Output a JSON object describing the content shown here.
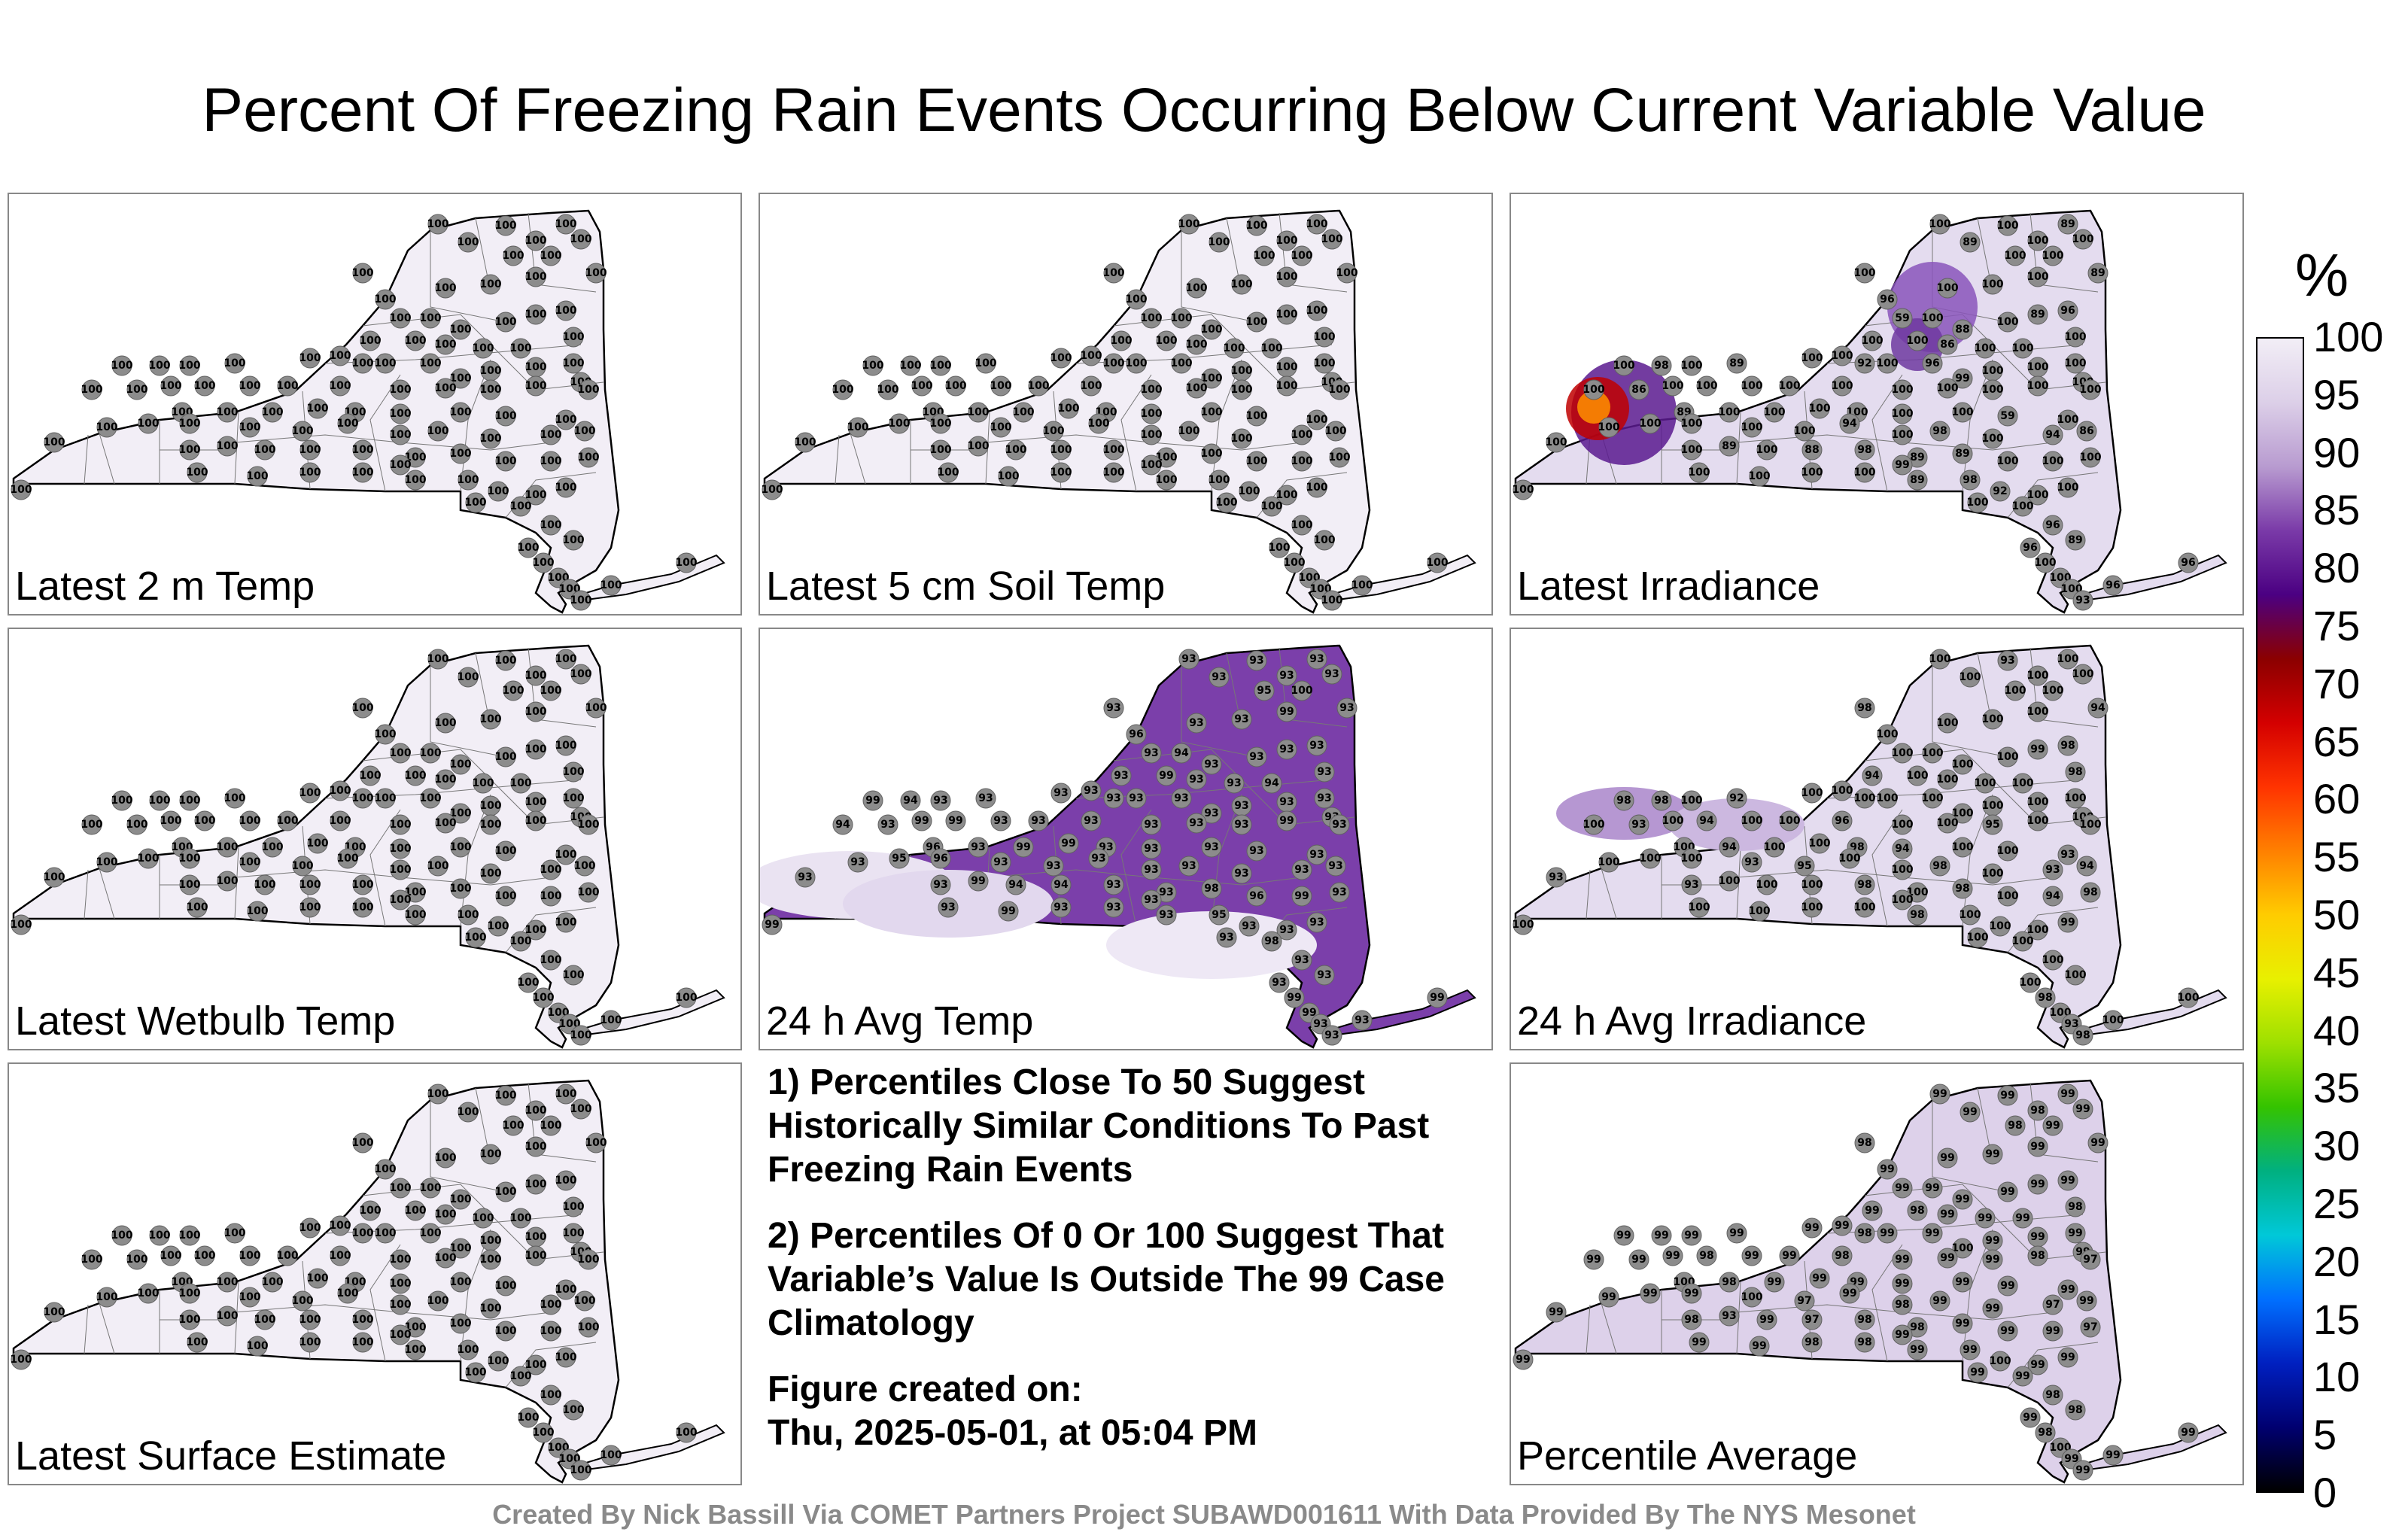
{
  "title": "Percent Of Freezing Rain Events Occurring Below Current Variable Value",
  "colorbar": {
    "unit": "%",
    "ticks": [
      "100",
      "95",
      "90",
      "85",
      "80",
      "75",
      "70",
      "65",
      "60",
      "55",
      "50",
      "45",
      "40",
      "35",
      "30",
      "25",
      "20",
      "15",
      "10",
      "5",
      "0"
    ],
    "stops": [
      "#f2eef6",
      "#dccfe8",
      "#b89bd0",
      "#7a3aa8",
      "#4b0082",
      "#8b0000",
      "#d40000",
      "#ff3300",
      "#ff8000",
      "#ffcc00",
      "#e8f000",
      "#9ee000",
      "#34c300",
      "#00b080",
      "#00c8d8",
      "#0070ff",
      "#0020c0",
      "#000070",
      "#000000"
    ]
  },
  "panels": [
    {
      "label": "Latest 2 m Temp",
      "default_value": "100",
      "fill": "#f2eef6"
    },
    {
      "label": "Latest 5 cm Soil Temp",
      "default_value": "100",
      "fill": "#f2eef6"
    },
    {
      "label": "Latest Irradiance",
      "default_value": "100",
      "fill": "#e4dcef",
      "special": [
        "93",
        "89",
        "96",
        "92",
        "98",
        "100",
        "88",
        "99",
        "89",
        "98",
        "94",
        "86",
        "59",
        "88",
        "89",
        "86",
        "96",
        "100"
      ]
    },
    {
      "label": "Latest Wetbulb Temp",
      "default_value": "100",
      "fill": "#f2eef6"
    },
    {
      "label": "24 h Avg Temp",
      "default_value": "93",
      "fill": "#7b3faa",
      "special": [
        "93",
        "94",
        "96",
        "95",
        "93",
        "96",
        "99",
        "99",
        "99",
        "100",
        "96",
        "94",
        "98",
        "96",
        "99",
        "100",
        "99",
        "96",
        "99"
      ]
    },
    {
      "label": "24 h Avg Irradiance",
      "default_value": "100",
      "fill": "#e4dcef",
      "special": [
        "92",
        "93",
        "94",
        "95",
        "93",
        "98",
        "98",
        "96",
        "98",
        "99",
        "100"
      ]
    },
    {
      "label": "Latest Surface Estimate",
      "default_value": "100",
      "fill": "#f2eef6"
    },
    {
      "label": "Percentile Average",
      "default_value": "99",
      "fill": "#ddd1ea",
      "special": [
        "98",
        "97",
        "99",
        "97",
        "98",
        "98",
        "99",
        "93",
        "98",
        "99",
        "100",
        "98",
        "97",
        "99",
        "98"
      ]
    }
  ],
  "notes": [
    "1) Percentiles Close To 50 Suggest Historically Similar Conditions To Past Freezing Rain Events",
    "2) Percentiles Of 0 Or 100 Suggest That Variable’s Value Is Outside The 99 Case Climatology",
    "Figure created on:",
    "Thu, 2025-05-01, at 05:04 PM"
  ],
  "credit": "Created By Nick Bassill Via COMET Partners Project SUBAWD001611 With Data Provided By The NYS Mesonet"
}
